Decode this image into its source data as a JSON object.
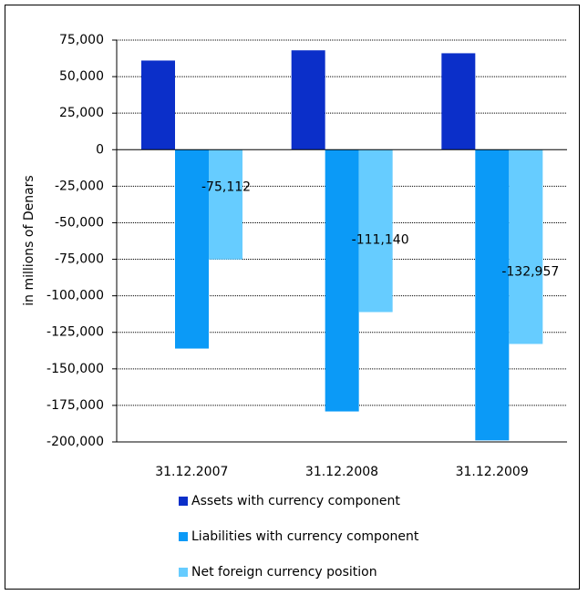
{
  "chart_data": {
    "type": "bar",
    "title": "",
    "xlabel": "",
    "ylabel": "in millions of Denars",
    "ylim": [
      -200000,
      75000
    ],
    "yticks": [
      75000,
      50000,
      25000,
      0,
      -25000,
      -50000,
      -75000,
      -100000,
      -125000,
      -150000,
      -175000,
      -200000
    ],
    "ytick_labels": [
      "75,000",
      "50,000",
      "25,000",
      "0",
      "-25,000",
      "-50,000",
      "-75,000",
      "-100,000",
      "-125,000",
      "-150,000",
      "-175,000",
      "-200,000"
    ],
    "grid": true,
    "legend_position": "bottom",
    "categories": [
      "31.12.2007",
      "31.12.2008",
      "31.12.2009"
    ],
    "series": [
      {
        "name": "Assets with currency component",
        "values": [
          61000,
          68000,
          66000
        ],
        "color": "#0B2FC9"
      },
      {
        "name": "Liabilities with currency component",
        "values": [
          -136112,
          -179140,
          -198957
        ],
        "color": "#0B9AF7"
      },
      {
        "name": "Net foreign currency position",
        "values": [
          -75112,
          -111140,
          -132957
        ],
        "color": "#66CCFF"
      }
    ],
    "data_labels": [
      "-75,112",
      "-111,140",
      "-132,957"
    ]
  }
}
